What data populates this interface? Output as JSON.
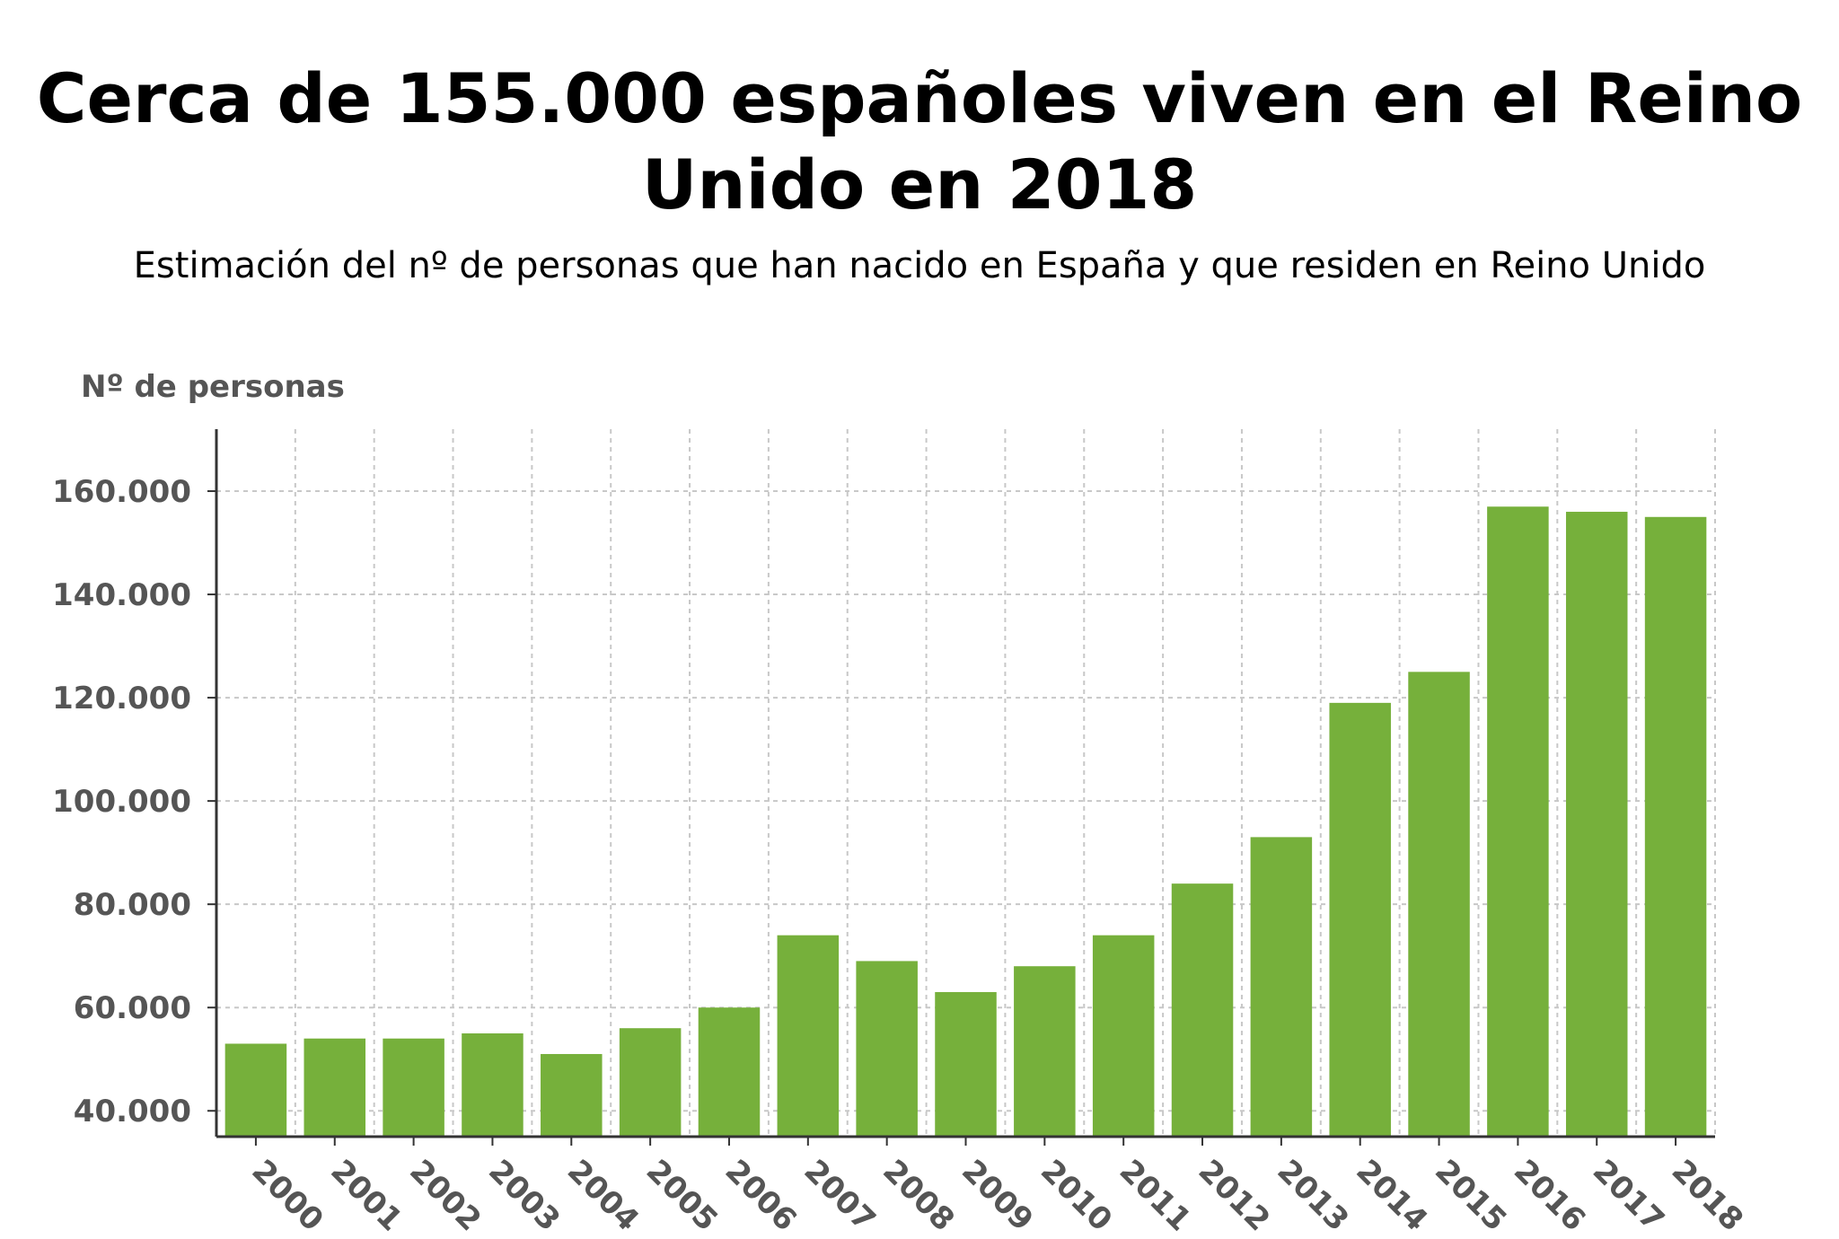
{
  "chart_data": {
    "type": "bar",
    "title": "Cerca de 155.000 españoles viven en el Reino Unido en 2018",
    "subtitle": "Estimación del nº de personas que han nacido en España y que residen en Reino Unido",
    "xlabel": "",
    "ylabel": "Nº de personas",
    "categories": [
      "2000",
      "2001",
      "2002",
      "2003",
      "2004",
      "2005",
      "2006",
      "2007",
      "2008",
      "2009",
      "2010",
      "2011",
      "2012",
      "2013",
      "2014",
      "2015",
      "2016",
      "2017",
      "2018"
    ],
    "values": [
      53000,
      54000,
      54000,
      55000,
      51000,
      56000,
      60000,
      74000,
      69000,
      63000,
      68000,
      74000,
      84000,
      93000,
      119000,
      125000,
      157000,
      156000,
      155000
    ],
    "ylim": [
      35000,
      172000
    ],
    "yticks": [
      40000,
      60000,
      80000,
      100000,
      120000,
      140000,
      160000
    ],
    "ytick_labels": [
      "40.000",
      "60.000",
      "80.000",
      "100.000",
      "120.000",
      "140.000",
      "160.000"
    ],
    "grid": true,
    "legend": "none",
    "bar_color": "#76b03b",
    "grid_color": "#c8c8c8",
    "axis_color": "#333333",
    "tick_label_color": "#555555"
  }
}
